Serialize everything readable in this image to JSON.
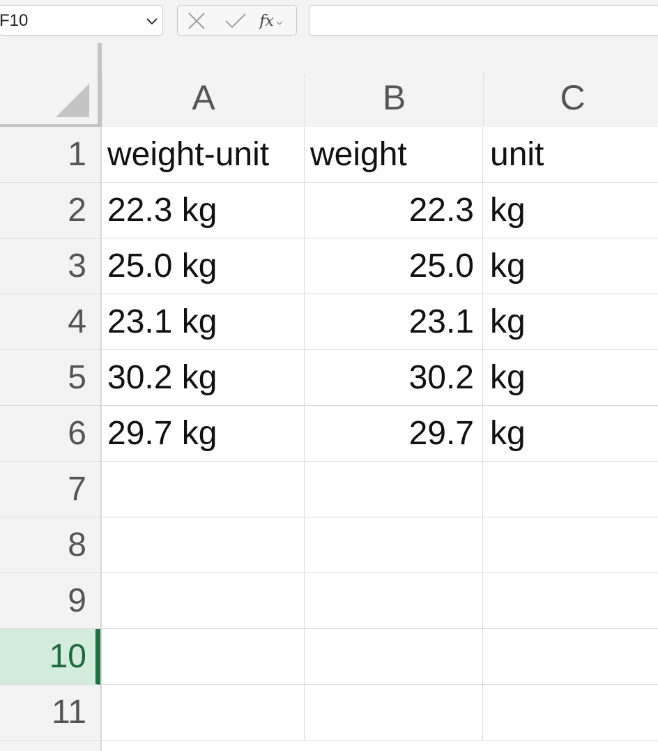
{
  "formula_bar": {
    "name_box_value": "F10",
    "cancel_icon": "x-icon",
    "enter_icon": "check-icon",
    "function_label": "fx",
    "formula_value": ""
  },
  "columns": [
    "A",
    "B",
    "C"
  ],
  "rows": [
    "1",
    "2",
    "3",
    "4",
    "5",
    "6",
    "7",
    "8",
    "9",
    "10",
    "11"
  ],
  "selected_row": "10",
  "cells": {
    "r1": {
      "a": "weight-unit",
      "b": "weight",
      "c": "unit"
    },
    "r2": {
      "a": "22.3 kg",
      "b": "22.3",
      "c": "kg"
    },
    "r3": {
      "a": "25.0 kg",
      "b": "25.0",
      "c": "kg"
    },
    "r4": {
      "a": "23.1 kg",
      "b": "23.1",
      "c": "kg"
    },
    "r5": {
      "a": "30.2 kg",
      "b": "30.2",
      "c": "kg"
    },
    "r6": {
      "a": "29.7 kg",
      "b": "29.7",
      "c": "kg"
    }
  },
  "colors": {
    "selection_accent": "#1e7145",
    "selection_fill": "#d3ecdc"
  }
}
